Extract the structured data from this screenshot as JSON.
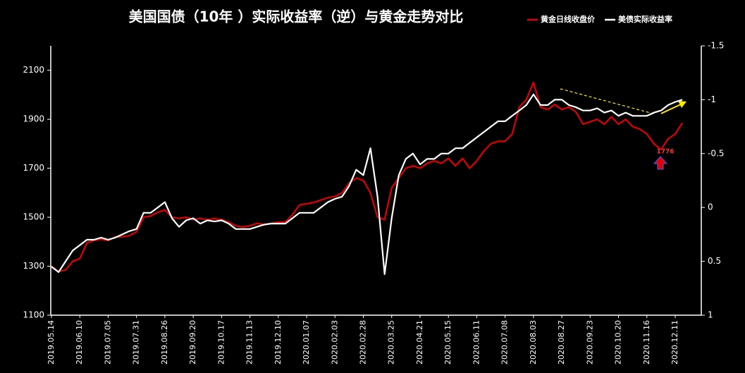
{
  "chart_data": {
    "type": "line",
    "title": "美国国债（10年 ）实际收益率（逆）与黄金走势对比",
    "categories": [
      "2019.05.14",
      null,
      null,
      null,
      "2019.06.10",
      null,
      null,
      null,
      "2019.07.05",
      null,
      null,
      null,
      "2019.07.31",
      null,
      null,
      null,
      "2019.08.26",
      null,
      null,
      null,
      "2019.09.20",
      null,
      null,
      null,
      "2019.10.17",
      null,
      null,
      null,
      "2019.11.13",
      null,
      null,
      null,
      "2019.12.10",
      null,
      null,
      null,
      "2020.01.07",
      null,
      null,
      null,
      "2020.02.03",
      null,
      null,
      null,
      "2020.02.28",
      null,
      null,
      null,
      "2020.03.25",
      null,
      null,
      null,
      "2020.04.21",
      null,
      null,
      null,
      "2020.05.15",
      null,
      null,
      null,
      "2020.06.11",
      null,
      null,
      null,
      "2020.07.08",
      null,
      null,
      null,
      "2020.08.03",
      null,
      null,
      null,
      "2020.08.27",
      null,
      null,
      null,
      "2020.09.23",
      null,
      null,
      null,
      "2020.10.20",
      null,
      null,
      null,
      "2020.11.16",
      null,
      null,
      null,
      "2020.12.11",
      null
    ],
    "series": [
      {
        "name": "黄金日线收盘价",
        "color": "#e00000",
        "axis": "y",
        "values": [
          1300,
          1278,
          1285,
          1320,
          1330,
          1395,
          1405,
          1410,
          1405,
          1420,
          1420,
          1425,
          1440,
          1500,
          1505,
          1520,
          1530,
          1500,
          1495,
          1500,
          1490,
          1495,
          1490,
          1495,
          1490,
          1480,
          1465,
          1460,
          1465,
          1475,
          1470,
          1475,
          1480,
          1480,
          1510,
          1550,
          1555,
          1560,
          1570,
          1580,
          1585,
          1600,
          1640,
          1660,
          1650,
          1600,
          1500,
          1490,
          1620,
          1660,
          1700,
          1710,
          1700,
          1720,
          1730,
          1720,
          1740,
          1710,
          1740,
          1700,
          1730,
          1770,
          1800,
          1810,
          1810,
          1840,
          1950,
          1980,
          2050,
          1950,
          1940,
          1960,
          1940,
          1950,
          1930,
          1880,
          1890,
          1900,
          1880,
          1910,
          1880,
          1900,
          1870,
          1860,
          1840,
          1800,
          1776,
          1820,
          1840,
          1885
        ]
      },
      {
        "name": "美债实际收益率",
        "color": "#ffffff",
        "axis": "y2",
        "values": [
          0.55,
          0.6,
          0.5,
          0.4,
          0.35,
          0.3,
          0.3,
          0.28,
          0.3,
          0.28,
          0.25,
          0.22,
          0.2,
          0.05,
          0.05,
          0.0,
          -0.05,
          0.1,
          0.18,
          0.12,
          0.1,
          0.15,
          0.12,
          0.13,
          0.12,
          0.15,
          0.2,
          0.2,
          0.2,
          0.18,
          0.16,
          0.15,
          0.15,
          0.15,
          0.1,
          0.05,
          0.05,
          0.05,
          0.0,
          -0.05,
          -0.08,
          -0.1,
          -0.2,
          -0.35,
          -0.3,
          -0.55,
          -0.1,
          0.62,
          0.1,
          -0.3,
          -0.45,
          -0.5,
          -0.4,
          -0.45,
          -0.45,
          -0.5,
          -0.5,
          -0.55,
          -0.55,
          -0.6,
          -0.65,
          -0.7,
          -0.75,
          -0.8,
          -0.8,
          -0.85,
          -0.9,
          -0.95,
          -1.05,
          -0.95,
          -0.95,
          -1.0,
          -1.0,
          -0.95,
          -0.93,
          -0.9,
          -0.9,
          -0.92,
          -0.88,
          -0.9,
          -0.85,
          -0.88,
          -0.85,
          -0.85,
          -0.85,
          -0.88,
          -0.9,
          -0.95,
          -0.98,
          -1.0
        ]
      }
    ],
    "ylim": [
      1100,
      2200
    ],
    "yticks": [
      1100,
      1300,
      1500,
      1700,
      1900,
      2100
    ],
    "y2lim": [
      -1.5,
      1
    ],
    "y2ticks": [
      -1.5,
      -1,
      -0.5,
      0,
      0.5,
      1
    ],
    "y2_inverted": true,
    "annotation": "1776",
    "grid": false
  }
}
